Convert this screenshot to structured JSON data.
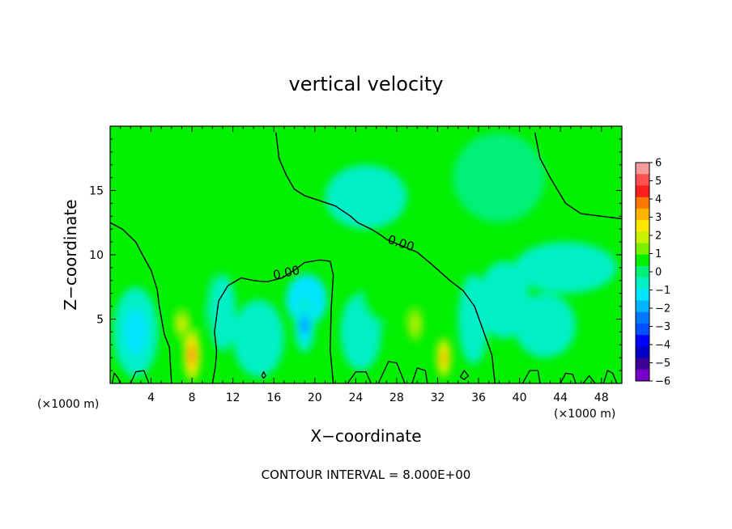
{
  "chart_data": {
    "type": "heatmap",
    "title": "vertical velocity",
    "xlabel": "X−coordinate",
    "ylabel": "Z−coordinate",
    "x_unit_left": "(×1000 m)",
    "x_unit_right": "(×1000 m)",
    "xlim": [
      0,
      50
    ],
    "ylim": [
      0,
      20
    ],
    "x_ticks": [
      4,
      8,
      12,
      16,
      20,
      24,
      28,
      32,
      36,
      40,
      44,
      48
    ],
    "y_ticks": [
      5,
      10,
      15
    ],
    "contour_interval_text": "CONTOUR INTERVAL = 8.000E+00",
    "contour_labels": [
      {
        "text": "0.00",
        "x": 17.3,
        "y": 8.3
      },
      {
        "text": "0.00",
        "x": 28.3,
        "y": 10.6
      }
    ],
    "colorbar": {
      "labels": [
        "6",
        "5",
        "4",
        "3",
        "2",
        "1",
        "0",
        "−1",
        "−2",
        "−3",
        "−4",
        "−5",
        "−6"
      ],
      "colors": [
        "#f49c9c",
        "#ff5050",
        "#ff1e1e",
        "#ff7800",
        "#ffb400",
        "#ffe600",
        "#c8f000",
        "#7af000",
        "#00f000",
        "#00f07a",
        "#00f0c8",
        "#00e6ff",
        "#00b4ff",
        "#0078ff",
        "#0050ff",
        "#0000ff",
        "#0000c8",
        "#3c0096",
        "#7800c8"
      ]
    },
    "field_blobs": [
      {
        "x": 8.0,
        "y": 2.2,
        "rx": 0.9,
        "ry": 2.3,
        "v": 4.5
      },
      {
        "x": 7.0,
        "y": 4.6,
        "rx": 0.8,
        "ry": 1.6,
        "v": 2.5
      },
      {
        "x": 7.6,
        "y": 8.0,
        "rx": 2.4,
        "ry": 4.5,
        "v": 0.8
      },
      {
        "x": 8.5,
        "y": 12.5,
        "rx": 2.6,
        "ry": 2.8,
        "v": 0.4
      },
      {
        "x": 32.6,
        "y": 2.0,
        "rx": 0.8,
        "ry": 1.8,
        "v": 4.0
      },
      {
        "x": 29.8,
        "y": 4.6,
        "rx": 0.9,
        "ry": 1.7,
        "v": 2.2
      },
      {
        "x": 27.5,
        "y": 7.0,
        "rx": 3.0,
        "ry": 2.5,
        "v": 0.9
      },
      {
        "x": 30.0,
        "y": 9.5,
        "rx": 3.5,
        "ry": 2.5,
        "v": 0.5
      },
      {
        "x": 15.0,
        "y": 10.5,
        "rx": 2.5,
        "ry": 1.6,
        "v": 0.4
      },
      {
        "x": 19.0,
        "y": 4.5,
        "rx": 1.0,
        "ry": 2.1,
        "v": -2.4
      },
      {
        "x": 19.2,
        "y": 6.5,
        "rx": 2.0,
        "ry": 2.0,
        "v": -1.0
      },
      {
        "x": 2.5,
        "y": 4.0,
        "rx": 2.2,
        "ry": 3.5,
        "v": -1.1
      },
      {
        "x": 11.0,
        "y": 5.5,
        "rx": 1.3,
        "ry": 3.0,
        "v": -0.6
      },
      {
        "x": 14.5,
        "y": 3.5,
        "rx": 2.5,
        "ry": 3.0,
        "v": -0.9
      },
      {
        "x": 24.5,
        "y": 4.0,
        "rx": 2.0,
        "ry": 3.0,
        "v": -0.8
      },
      {
        "x": 35.5,
        "y": 5.0,
        "rx": 1.5,
        "ry": 3.5,
        "v": -0.8
      },
      {
        "x": 38.5,
        "y": 6.5,
        "rx": 2.5,
        "ry": 3.0,
        "v": -0.6
      },
      {
        "x": 42.5,
        "y": 4.5,
        "rx": 3.0,
        "ry": 2.5,
        "v": -0.7
      },
      {
        "x": 38.0,
        "y": 16.0,
        "rx": 4.5,
        "ry": 3.5,
        "v": 0.3
      },
      {
        "x": 25.0,
        "y": 14.5,
        "rx": 4.0,
        "ry": 2.5,
        "v": -0.35
      },
      {
        "x": 44.5,
        "y": 9.0,
        "rx": 5.0,
        "ry": 2.0,
        "v": -0.35
      }
    ],
    "zero_contours": [
      [
        [
          0,
          12.5
        ],
        [
          1.2,
          12.0
        ],
        [
          2.5,
          11.0
        ],
        [
          3.3,
          9.8
        ],
        [
          4.0,
          8.8
        ],
        [
          4.6,
          7.3
        ],
        [
          4.8,
          6.0
        ],
        [
          5.3,
          3.8
        ],
        [
          5.8,
          2.8
        ],
        [
          6.0,
          0
        ]
      ],
      [
        [
          10.0,
          0
        ],
        [
          10.3,
          1.4
        ],
        [
          10.4,
          2.5
        ],
        [
          10.2,
          4.0
        ],
        [
          10.5,
          5.8
        ],
        [
          10.6,
          6.4
        ],
        [
          11.5,
          7.6
        ],
        [
          12.8,
          8.2
        ],
        [
          14.0,
          8.0
        ],
        [
          15.3,
          7.9
        ],
        [
          16.8,
          8.2
        ],
        [
          18.0,
          8.8
        ],
        [
          19.0,
          9.4
        ],
        [
          20.5,
          9.6
        ],
        [
          21.5,
          9.5
        ],
        [
          21.8,
          8.4
        ],
        [
          21.6,
          5.8
        ],
        [
          21.5,
          2.6
        ],
        [
          21.8,
          0
        ]
      ],
      [
        [
          16.2,
          19.5
        ],
        [
          16.5,
          17.5
        ],
        [
          17.2,
          16.2
        ],
        [
          18.0,
          15.1
        ],
        [
          19.0,
          14.6
        ],
        [
          20.5,
          14.2
        ],
        [
          22.0,
          13.8
        ],
        [
          23.5,
          13.0
        ],
        [
          24.2,
          12.5
        ],
        [
          25.5,
          12.0
        ],
        [
          26.5,
          11.5
        ],
        [
          27.0,
          11.2
        ],
        [
          28.2,
          10.8
        ],
        [
          30.0,
          10.2
        ],
        [
          31.5,
          9.2
        ],
        [
          33.2,
          8.0
        ],
        [
          34.5,
          7.2
        ],
        [
          35.6,
          6.0
        ],
        [
          36.5,
          4.0
        ],
        [
          37.3,
          2.2
        ],
        [
          37.6,
          0
        ]
      ],
      [
        [
          41.5,
          19.5
        ],
        [
          42.0,
          17.5
        ],
        [
          43.0,
          16.0
        ],
        [
          44.5,
          14.0
        ],
        [
          46.0,
          13.2
        ],
        [
          48.0,
          13.0
        ],
        [
          50.0,
          12.8
        ]
      ]
    ],
    "surface_contours": [
      [
        [
          0.2,
          0
        ],
        [
          0.4,
          0.8
        ],
        [
          0.8,
          0.4
        ],
        [
          1.0,
          0
        ]
      ],
      [
        [
          2.0,
          0
        ],
        [
          2.5,
          0.9
        ],
        [
          3.3,
          1.0
        ],
        [
          3.8,
          0
        ]
      ],
      [
        [
          23.2,
          0
        ],
        [
          24.0,
          0.9
        ],
        [
          25.0,
          0.9
        ],
        [
          25.5,
          0
        ]
      ],
      [
        [
          26.2,
          0
        ],
        [
          27.2,
          1.7
        ],
        [
          28.0,
          1.6
        ],
        [
          28.8,
          0
        ]
      ],
      [
        [
          29.5,
          0
        ],
        [
          30.0,
          1.2
        ],
        [
          30.8,
          1.0
        ],
        [
          31.0,
          0
        ]
      ],
      [
        [
          34.2,
          0.5
        ],
        [
          34.6,
          1.0
        ],
        [
          35.0,
          0.6
        ],
        [
          34.6,
          0.3
        ],
        [
          34.2,
          0.5
        ]
      ],
      [
        [
          40.3,
          0
        ],
        [
          41.0,
          1.0
        ],
        [
          41.8,
          1.0
        ],
        [
          42.0,
          0
        ]
      ],
      [
        [
          44.0,
          0
        ],
        [
          44.5,
          0.8
        ],
        [
          45.2,
          0.7
        ],
        [
          45.5,
          0
        ]
      ],
      [
        [
          46.2,
          0
        ],
        [
          46.8,
          0.6
        ],
        [
          47.4,
          0
        ]
      ],
      [
        [
          48.2,
          0
        ],
        [
          48.6,
          1.0
        ],
        [
          49.1,
          0.8
        ],
        [
          49.5,
          0
        ]
      ],
      [
        [
          14.8,
          0.6
        ],
        [
          15.0,
          0.9
        ],
        [
          15.2,
          0.6
        ],
        [
          15.0,
          0.4
        ],
        [
          14.8,
          0.6
        ]
      ]
    ]
  }
}
